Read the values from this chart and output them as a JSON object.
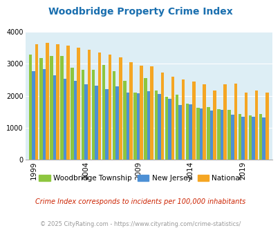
{
  "title": "Woodbridge Property Crime Index",
  "woodbridge_full": [
    3300,
    3190,
    3240,
    3250,
    2880,
    2820,
    2810,
    2960,
    2770,
    2460,
    2090,
    2560,
    2160,
    1970,
    2030,
    1750,
    1630,
    1650,
    1570,
    1550,
    1430,
    1380,
    1430
  ],
  "new_jersey_full": [
    2780,
    2840,
    2640,
    2540,
    2460,
    2350,
    2310,
    2200,
    2300,
    2090,
    2080,
    2140,
    2050,
    1900,
    1720,
    1730,
    1610,
    1540,
    1550,
    1410,
    1340,
    1350,
    1330
  ],
  "national_full": [
    3620,
    3660,
    3620,
    3580,
    3510,
    3440,
    3360,
    3290,
    3210,
    3050,
    2940,
    2920,
    2730,
    2590,
    2500,
    2450,
    2370,
    2170,
    2370,
    2390,
    2100,
    2170,
    2100
  ],
  "color_woodbridge": "#8dc63f",
  "color_nj": "#4d90d5",
  "color_national": "#f5a623",
  "bg_color": "#ddeef5",
  "ylim": [
    0,
    4000
  ],
  "yticks": [
    0,
    1000,
    2000,
    3000,
    4000
  ],
  "xtick_labels": [
    "1999",
    "2004",
    "2009",
    "2014",
    "2019"
  ],
  "xtick_positions": [
    0,
    5,
    10,
    15,
    20
  ],
  "subtitle": "Crime Index corresponds to incidents per 100,000 inhabitants",
  "footer": "© 2025 CityRating.com - https://www.cityrating.com/crime-statistics/",
  "legend_labels": [
    "Woodbridge Township",
    "New Jersey",
    "National"
  ],
  "title_color": "#1a6faf",
  "subtitle_color": "#cc2200",
  "footer_color": "#999999"
}
